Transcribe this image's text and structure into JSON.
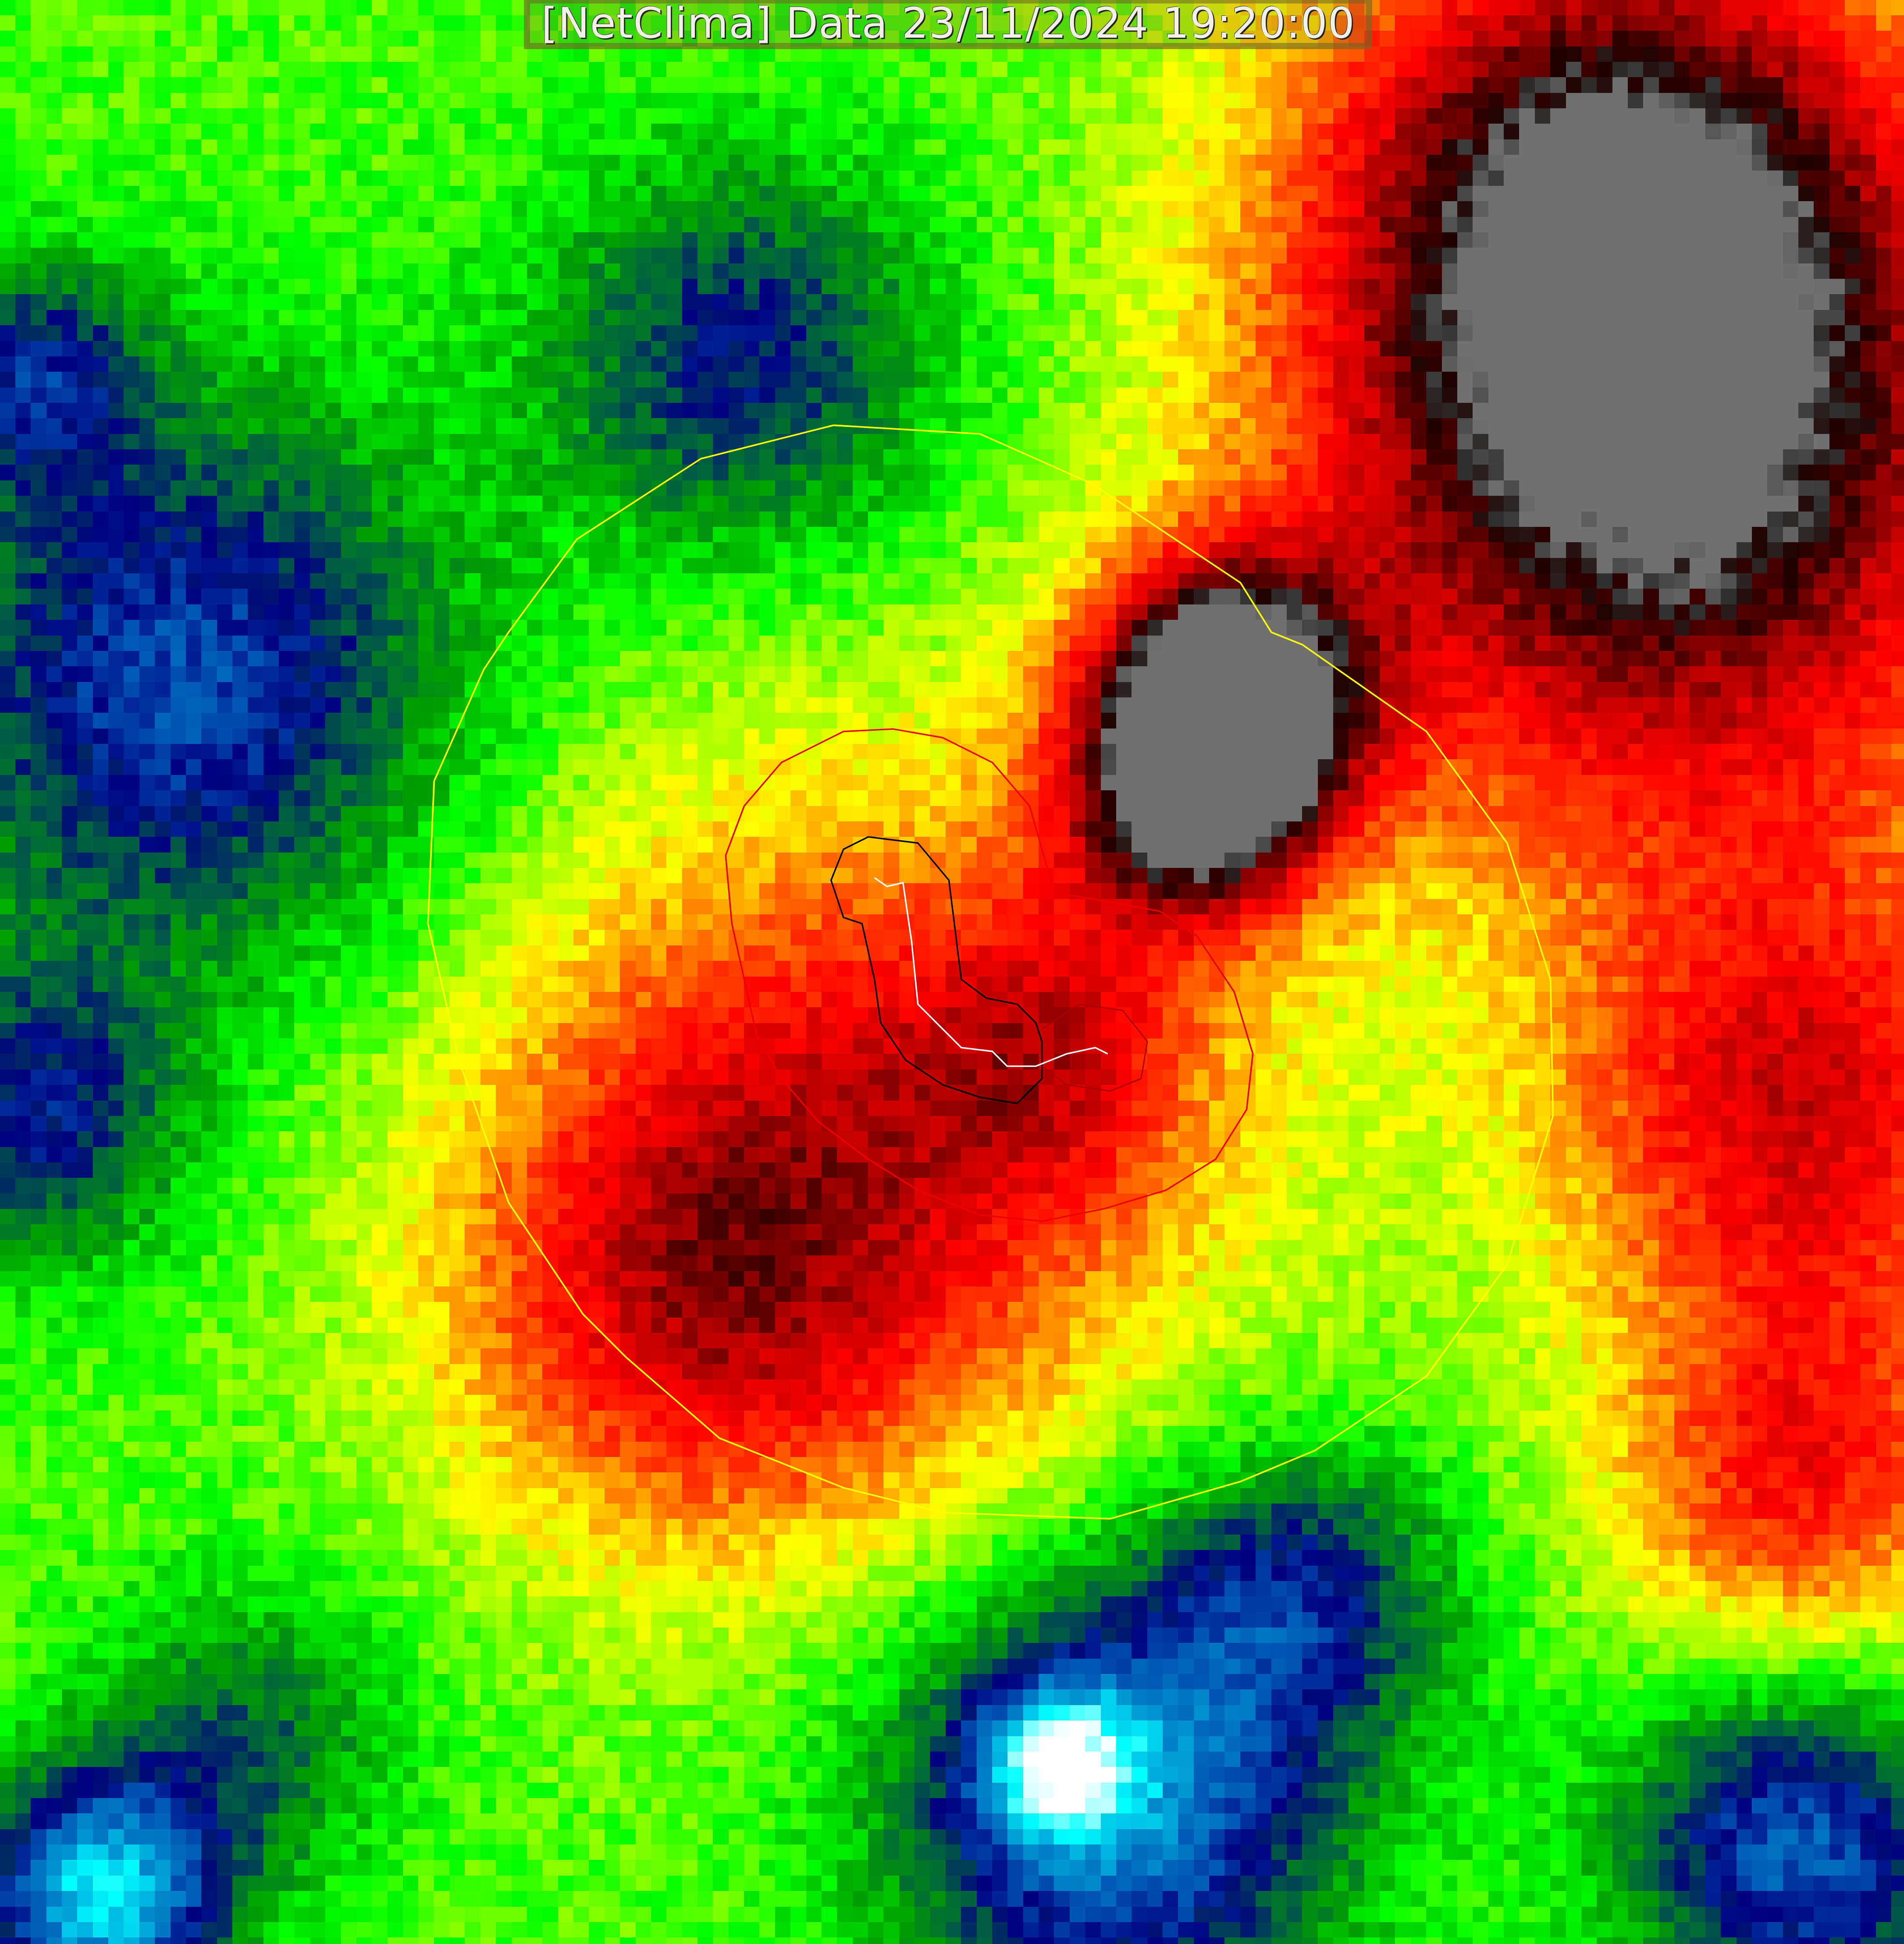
{
  "header": {
    "title": "[NetClima] Data 23/11/2024 19:20:00"
  },
  "map": {
    "type": "satellite infrared brightness-temperature image (enhanced color palette)",
    "contour_colors": {
      "outer": "#ffff00",
      "middle": "#ff0000",
      "inner": "#000000",
      "track": "#ffffff"
    },
    "palette": [
      "#ffffff",
      "#00ffff",
      "#0090d0",
      "#0050b0",
      "#000080",
      "#006040",
      "#00a000",
      "#00ff00",
      "#a0ff00",
      "#ffff00",
      "#ffa000",
      "#ff4000",
      "#ff0000",
      "#c00000",
      "#600000",
      "#200000",
      "#303030",
      "#707070"
    ]
  }
}
